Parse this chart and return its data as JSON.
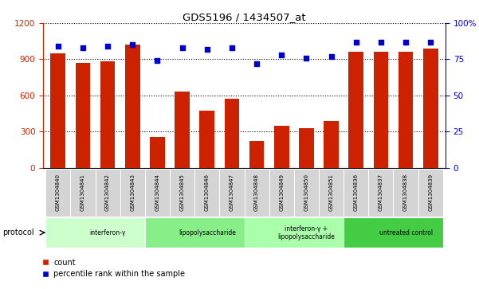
{
  "title": "GDS5196 / 1434507_at",
  "samples": [
    "GSM1304840",
    "GSM1304841",
    "GSM1304842",
    "GSM1304843",
    "GSM1304844",
    "GSM1304845",
    "GSM1304846",
    "GSM1304847",
    "GSM1304848",
    "GSM1304849",
    "GSM1304850",
    "GSM1304851",
    "GSM1304836",
    "GSM1304837",
    "GSM1304838",
    "GSM1304839"
  ],
  "counts": [
    950,
    870,
    880,
    1020,
    255,
    630,
    470,
    570,
    220,
    350,
    330,
    390,
    960,
    960,
    960,
    990
  ],
  "percentiles": [
    84,
    83,
    84,
    85,
    74,
    83,
    82,
    83,
    72,
    78,
    76,
    77,
    87,
    87,
    87,
    87
  ],
  "groups": [
    {
      "label": "interferon-γ",
      "start": 0,
      "end": 4,
      "color": "#ccffcc"
    },
    {
      "label": "lipopolysaccharide",
      "start": 4,
      "end": 8,
      "color": "#88ee88"
    },
    {
      "label": "interferon-γ +\nlipopolysaccharide",
      "start": 8,
      "end": 12,
      "color": "#aaffaa"
    },
    {
      "label": "untreated control",
      "start": 12,
      "end": 16,
      "color": "#44cc44"
    }
  ],
  "ylim_left": [
    0,
    1200
  ],
  "ylim_right": [
    0,
    100
  ],
  "yticks_left": [
    0,
    300,
    600,
    900,
    1200
  ],
  "yticks_right": [
    0,
    25,
    50,
    75,
    100
  ],
  "bar_color": "#cc2200",
  "dot_color": "#0000cc",
  "legend_count": "count",
  "legend_percentile": "percentile rank within the sample"
}
